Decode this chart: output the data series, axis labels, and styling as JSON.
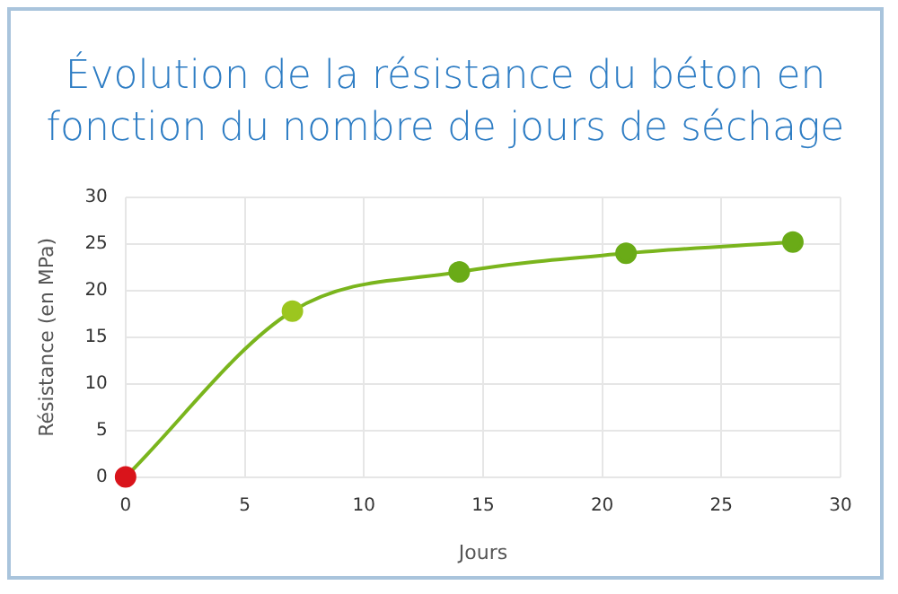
{
  "chart_data": {
    "type": "line",
    "title": "Évolution de la résistance du béton en fonction du nombre de jours de séchage",
    "xlabel": "Jours",
    "ylabel": "Résistance (en MPa)",
    "x": [
      0,
      7,
      14,
      21,
      28
    ],
    "series": [
      {
        "color": "#7ab51d",
        "colors": [
          "#d9141b",
          "#9cc61f",
          "#6aab17",
          "#6aab17",
          "#6aab17"
        ],
        "values": [
          0,
          17.8,
          22,
          24,
          25.2
        ]
      }
    ],
    "xlim": [
      0,
      30
    ],
    "xticks": [
      0,
      5,
      10,
      15,
      20,
      25,
      30
    ],
    "ylim": [
      0,
      30
    ],
    "yticks": [
      0,
      5,
      10,
      15,
      20,
      25,
      30
    ],
    "grid": true,
    "legend": false,
    "marker": "circle",
    "line_style": "solid"
  }
}
